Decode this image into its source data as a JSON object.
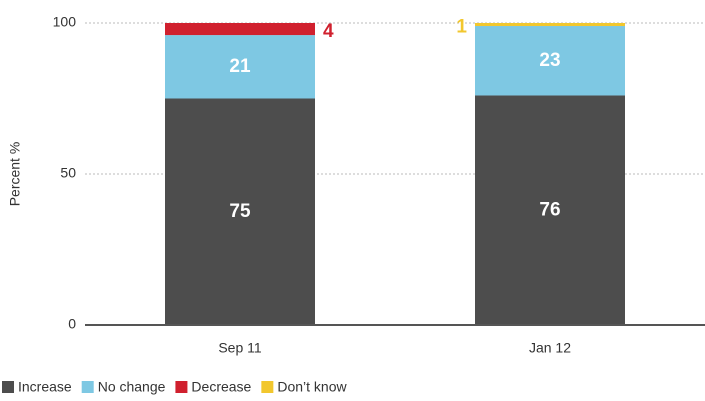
{
  "chart_data": {
    "type": "stacked_bar",
    "y_label": "Percent %",
    "categories": [
      "Sep 11",
      "Jan 12"
    ],
    "series": [
      {
        "name": "Increase",
        "color": "#4d4d4d",
        "values": [
          75,
          76
        ]
      },
      {
        "name": "No change",
        "color": "#7ec8e3",
        "values": [
          21,
          23
        ]
      },
      {
        "name": "Decrease",
        "color": "#d0202e",
        "values": [
          4,
          null
        ]
      },
      {
        "name": "Don’t know",
        "color": "#f2c72e",
        "values": [
          null,
          1
        ]
      }
    ],
    "ylim": [
      0,
      100
    ],
    "yticks": [
      0,
      50,
      100
    ],
    "grid": true
  }
}
